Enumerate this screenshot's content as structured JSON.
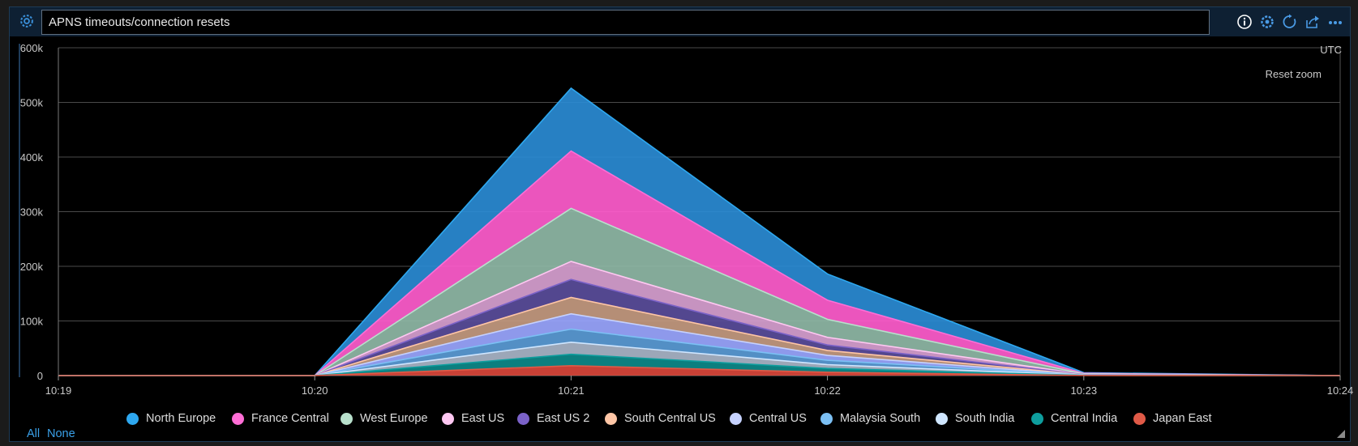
{
  "panel": {
    "title": "APNS timeouts/connection resets",
    "timezone_label": "UTC",
    "reset_zoom_label": "Reset zoom",
    "legend_all_label": "All",
    "legend_none_label": "None"
  },
  "toolbar": [
    "info-icon",
    "settings-icon",
    "refresh-icon",
    "share-icon",
    "more-icon"
  ],
  "chart_data": {
    "type": "area",
    "stacked": true,
    "title": "APNS timeouts/connection resets",
    "x": [
      "10:19",
      "10:20",
      "10:21",
      "10:22",
      "10:23",
      "10:24"
    ],
    "ylim": [
      0,
      600000
    ],
    "yticks": [
      0,
      100000,
      200000,
      300000,
      400000,
      500000,
      600000
    ],
    "ytick_labels": [
      "0",
      "100k",
      "200k",
      "300k",
      "400k",
      "500k",
      "600k"
    ],
    "series": [
      {
        "name": "North Europe",
        "color": "#2a8bd4",
        "values": [
          0,
          0,
          115000,
          48000,
          1200,
          0
        ]
      },
      {
        "name": "France Central",
        "color": "#ff5ccd",
        "values": [
          0,
          0,
          105000,
          35000,
          900,
          0
        ]
      },
      {
        "name": "West Europe",
        "color": "#8fb8a6",
        "values": [
          0,
          0,
          97000,
          33000,
          800,
          0
        ]
      },
      {
        "name": "East US",
        "color": "#d7a0d0",
        "values": [
          0,
          0,
          33000,
          14000,
          500,
          0
        ]
      },
      {
        "name": "East US 2",
        "color": "#5a4d9b",
        "values": [
          0,
          0,
          33000,
          10000,
          400,
          0
        ]
      },
      {
        "name": "South Central US",
        "color": "#c49a80",
        "values": [
          0,
          0,
          30000,
          9000,
          300,
          0
        ]
      },
      {
        "name": "Central US",
        "color": "#9aa6ff",
        "values": [
          0,
          0,
          28000,
          9000,
          300,
          0
        ]
      },
      {
        "name": "Malaysia South",
        "color": "#5a9bd6",
        "values": [
          0,
          0,
          24000,
          8000,
          250,
          0
        ]
      },
      {
        "name": "South India",
        "color": "#a9b5c8",
        "values": [
          0,
          0,
          22000,
          7000,
          250,
          0
        ]
      },
      {
        "name": "Central India",
        "color": "#0d8a8a",
        "values": [
          0,
          0,
          21000,
          7000,
          200,
          0
        ]
      },
      {
        "name": "Japan East",
        "color": "#d9473b",
        "values": [
          0,
          0,
          18000,
          6000,
          200,
          0
        ]
      }
    ],
    "legend_dot_colors": [
      "#2ea8f0",
      "#ff6ed6",
      "#b8e0cc",
      "#ffc8f2",
      "#7b62c8",
      "#ffc6a6",
      "#c6d2ff",
      "#7cc0f4",
      "#cfe6ff",
      "#0e9e9e",
      "#e05a47"
    ]
  }
}
